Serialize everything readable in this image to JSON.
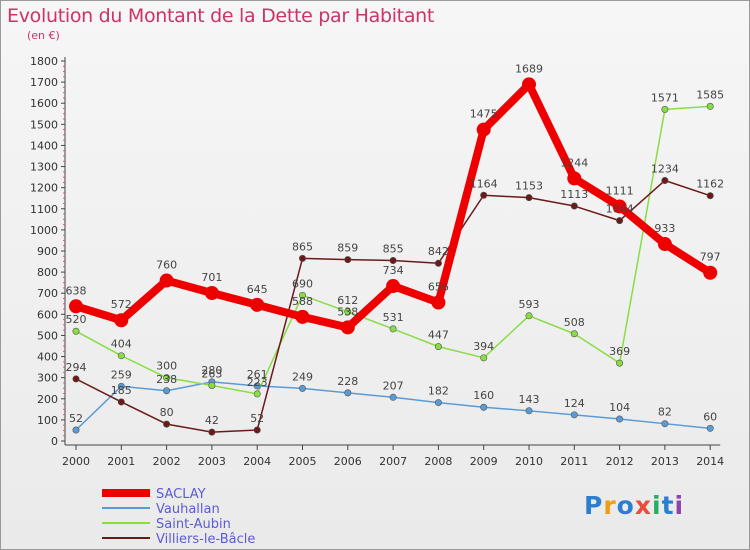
{
  "title": "Evolution du Montant de la Dette par Habitant",
  "subtitle": "(en €)",
  "logo": {
    "letters": [
      "P",
      "r",
      "o",
      "x",
      "i",
      "t",
      "i"
    ],
    "colors": [
      "#2a7fd0",
      "#f39c12",
      "#2a7fd0",
      "#e74c3c",
      "#27ae60",
      "#2a7fd0",
      "#8e44ad"
    ]
  },
  "chart_data": {
    "type": "line",
    "title": "Evolution du Montant de la Dette par Habitant",
    "ylabel": "(en €)",
    "xlabel": "",
    "x": [
      "2000",
      "2001",
      "2002",
      "2003",
      "2004",
      "2005",
      "2006",
      "2007",
      "2008",
      "2009",
      "2010",
      "2011",
      "2012",
      "2013",
      "2014"
    ],
    "ylim": [
      0,
      1800
    ],
    "yticks": [
      0,
      100,
      200,
      300,
      400,
      500,
      600,
      700,
      800,
      900,
      1000,
      1100,
      1200,
      1300,
      1400,
      1500,
      1600,
      1700,
      1800
    ],
    "grid": false,
    "legend_position": "bottom-left",
    "series": [
      {
        "name": "SACLAY",
        "color": "#ee0000",
        "emphasis": true,
        "values": [
          638,
          572,
          760,
          701,
          645,
          588,
          538,
          734,
          656,
          1475,
          1689,
          1244,
          1111,
          933,
          797
        ]
      },
      {
        "name": "Vauhallan",
        "color": "#5b9bd5",
        "emphasis": false,
        "values": [
          52,
          259,
          238,
          280,
          261,
          249,
          228,
          207,
          182,
          160,
          143,
          124,
          104,
          82,
          60
        ]
      },
      {
        "name": "Saint-Aubin",
        "color": "#88dd44",
        "emphasis": false,
        "values": [
          520,
          404,
          300,
          263,
          223,
          690,
          612,
          531,
          447,
          394,
          593,
          508,
          369,
          1571,
          1585
        ]
      },
      {
        "name": "Villiers-le-Bâcle",
        "color": "#6b1a1a",
        "emphasis": false,
        "values": [
          294,
          185,
          80,
          42,
          52,
          865,
          859,
          855,
          842,
          1164,
          1153,
          1113,
          1044,
          1234,
          1162
        ]
      }
    ]
  }
}
